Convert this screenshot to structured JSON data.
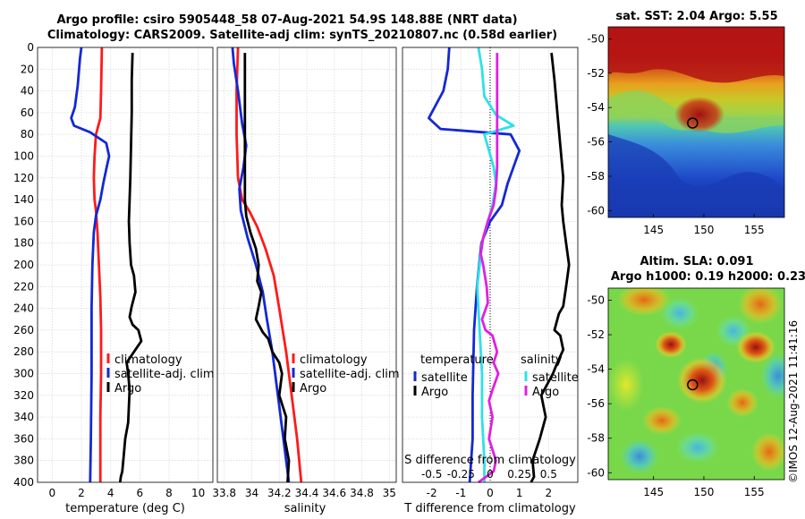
{
  "header": {
    "title_line1": "Argo profile: csiro 5905448_58 07-Aug-2021 54.9S 148.88E (NRT data)",
    "title_line2": "Climatology: CARS2009. Satellite-adj clim: synTS_20210807.nc (0.58d earlier)"
  },
  "colors": {
    "climatology": "#ff1a1a",
    "satellite": "#1428d4",
    "argo": "#000000",
    "salinity_satellite": "#30e0e8",
    "salinity_argo": "#e020e0"
  },
  "sst_map": {
    "title": "sat. SST: 2.04 Argo: 5.55",
    "lon_ticks": [
      145,
      150,
      155
    ],
    "lat_ticks": [
      -50,
      -52,
      -54,
      -56,
      -58,
      -60
    ],
    "float_lon": 148.88,
    "float_lat": -54.9
  },
  "sla_map": {
    "title_line1": "Altim. SLA: 0.091",
    "title_line2": "Argo h1000: 0.19 h2000: 0.23",
    "lon_ticks": [
      145,
      150,
      155
    ],
    "lat_ticks": [
      -50,
      -52,
      -54,
      -56,
      -58,
      -60
    ],
    "float_lon": 148.88,
    "float_lat": -54.9
  },
  "watermark": "©IMOS 12-Aug-2021 11:41:16",
  "chart_data": [
    {
      "type": "line",
      "name": "temperature",
      "xlabel": "temperature (deg C)",
      "ylabel": "",
      "xlim": [
        -1,
        11
      ],
      "ylim": [
        400,
        0
      ],
      "xticks": [
        0,
        2,
        4,
        6,
        8,
        10
      ],
      "yticks": [
        0,
        20,
        40,
        60,
        80,
        100,
        120,
        140,
        160,
        180,
        200,
        220,
        240,
        260,
        280,
        300,
        320,
        340,
        360,
        380,
        400
      ],
      "grid": true,
      "legend": {
        "position": "bottom-right",
        "entries": [
          "climatology",
          "satellite-adj. clim",
          "Argo"
        ]
      },
      "series": [
        {
          "name": "climatology",
          "color": "#ff1a1a",
          "points": [
            [
              3.4,
              0
            ],
            [
              3.35,
              40
            ],
            [
              3.3,
              65
            ],
            [
              3.0,
              80
            ],
            [
              2.9,
              100
            ],
            [
              2.85,
              120
            ],
            [
              2.9,
              140
            ],
            [
              3.0,
              150
            ],
            [
              3.1,
              170
            ],
            [
              3.2,
              200
            ],
            [
              3.3,
              230
            ],
            [
              3.35,
              260
            ],
            [
              3.35,
              300
            ],
            [
              3.3,
              340
            ],
            [
              3.3,
              380
            ],
            [
              3.3,
              400
            ]
          ]
        },
        {
          "name": "satellite-adj. clim",
          "color": "#1428d4",
          "points": [
            [
              2.0,
              0
            ],
            [
              1.9,
              10
            ],
            [
              1.75,
              35
            ],
            [
              1.55,
              55
            ],
            [
              1.3,
              65
            ],
            [
              1.5,
              72
            ],
            [
              2.6,
              78
            ],
            [
              3.7,
              88
            ],
            [
              3.9,
              100
            ],
            [
              3.7,
              112
            ],
            [
              3.5,
              125
            ],
            [
              3.3,
              140
            ],
            [
              3.0,
              155
            ],
            [
              2.85,
              170
            ],
            [
              2.75,
              200
            ],
            [
              2.7,
              240
            ],
            [
              2.7,
              300
            ],
            [
              2.65,
              360
            ],
            [
              2.6,
              400
            ]
          ]
        },
        {
          "name": "Argo",
          "color": "#000000",
          "points": [
            [
              5.5,
              5
            ],
            [
              5.45,
              30
            ],
            [
              5.45,
              60
            ],
            [
              5.4,
              90
            ],
            [
              5.35,
              120
            ],
            [
              5.3,
              140
            ],
            [
              5.25,
              160
            ],
            [
              5.3,
              180
            ],
            [
              5.4,
              200
            ],
            [
              5.6,
              210
            ],
            [
              5.7,
              225
            ],
            [
              5.45,
              238
            ],
            [
              5.3,
              248
            ],
            [
              5.5,
              255
            ],
            [
              5.9,
              260
            ],
            [
              6.1,
              270
            ],
            [
              5.6,
              280
            ],
            [
              5.1,
              290
            ],
            [
              5.2,
              300
            ],
            [
              5.3,
              315
            ],
            [
              5.25,
              330
            ],
            [
              5.2,
              345
            ],
            [
              5.0,
              360
            ],
            [
              4.9,
              375
            ],
            [
              4.8,
              390
            ],
            [
              4.7,
              395
            ],
            [
              4.65,
              400
            ]
          ]
        }
      ]
    },
    {
      "type": "line",
      "name": "salinity",
      "xlabel": "salinity",
      "ylabel": "",
      "xlim": [
        33.75,
        35.05
      ],
      "ylim": [
        400,
        0
      ],
      "xticks": [
        33.8,
        34,
        34.2,
        34.4,
        34.6,
        34.8,
        35
      ],
      "xtick_labels": [
        "33.8",
        "34",
        "34.2",
        "34.4",
        "34.6",
        "34.8",
        "35"
      ],
      "grid": true,
      "legend": {
        "position": "bottom-right",
        "entries": [
          "climatology",
          "satellite-adj. clim",
          "Argo"
        ]
      },
      "series": [
        {
          "name": "climatology",
          "color": "#ff1a1a",
          "points": [
            [
              33.9,
              0
            ],
            [
              33.89,
              40
            ],
            [
              33.89,
              80
            ],
            [
              33.9,
              120
            ],
            [
              33.93,
              140
            ],
            [
              33.98,
              150
            ],
            [
              34.04,
              165
            ],
            [
              34.1,
              185
            ],
            [
              34.16,
              210
            ],
            [
              34.2,
              240
            ],
            [
              34.25,
              280
            ],
            [
              34.29,
              320
            ],
            [
              34.33,
              360
            ],
            [
              34.36,
              400
            ]
          ]
        },
        {
          "name": "satellite-adj. clim",
          "color": "#1428d4",
          "points": [
            [
              33.86,
              0
            ],
            [
              33.87,
              15
            ],
            [
              33.9,
              40
            ],
            [
              33.93,
              70
            ],
            [
              33.96,
              90
            ],
            [
              33.94,
              110
            ],
            [
              33.91,
              130
            ],
            [
              33.92,
              150
            ],
            [
              33.97,
              175
            ],
            [
              34.03,
              200
            ],
            [
              34.08,
              225
            ],
            [
              34.11,
              250
            ],
            [
              34.15,
              280
            ],
            [
              34.19,
              320
            ],
            [
              34.24,
              370
            ],
            [
              34.27,
              400
            ]
          ]
        },
        {
          "name": "Argo",
          "color": "#000000",
          "points": [
            [
              33.95,
              5
            ],
            [
              33.95,
              60
            ],
            [
              33.95,
              100
            ],
            [
              33.95,
              140
            ],
            [
              33.96,
              155
            ],
            [
              33.99,
              170
            ],
            [
              34.03,
              185
            ],
            [
              34.05,
              200
            ],
            [
              34.04,
              215
            ],
            [
              34.07,
              225
            ],
            [
              34.05,
              238
            ],
            [
              34.03,
              250
            ],
            [
              34.08,
              262
            ],
            [
              34.12,
              268
            ],
            [
              34.15,
              280
            ],
            [
              34.2,
              290
            ],
            [
              34.22,
              300
            ],
            [
              34.2,
              320
            ],
            [
              34.25,
              340
            ],
            [
              34.24,
              360
            ],
            [
              34.27,
              380
            ],
            [
              34.26,
              400
            ]
          ]
        }
      ]
    },
    {
      "type": "line",
      "name": "difference",
      "xlabel": "T difference from climatology",
      "x2label": "S difference from climatology",
      "xlim": [
        -3,
        3
      ],
      "ylim": [
        400,
        0
      ],
      "xticks": [
        -2,
        -1,
        0,
        1,
        2
      ],
      "x2ticks": [
        -0.5,
        -0.25,
        0,
        0.25,
        0.5
      ],
      "x2tick_labels": [
        "-0.5",
        "-0.25",
        "0",
        "0.25",
        "0.5"
      ],
      "grid": true,
      "legend_temperature": {
        "title": "temperature",
        "position": "bottom-left",
        "entries": [
          "satellite",
          "Argo"
        ]
      },
      "legend_salinity": {
        "title": "salinity",
        "position": "bottom-right",
        "entries": [
          "satellite",
          "Argo"
        ]
      },
      "series": [
        {
          "name": "T satellite",
          "color": "#1428d4",
          "points": [
            [
              -1.4,
              0
            ],
            [
              -1.45,
              20
            ],
            [
              -1.6,
              40
            ],
            [
              -2.1,
              65
            ],
            [
              -1.7,
              75
            ],
            [
              0.7,
              80
            ],
            [
              1.0,
              95
            ],
            [
              0.8,
              110
            ],
            [
              0.6,
              125
            ],
            [
              0.4,
              145
            ],
            [
              0.0,
              160
            ],
            [
              -0.3,
              180
            ],
            [
              -0.45,
              220
            ],
            [
              -0.55,
              260
            ],
            [
              -0.6,
              320
            ],
            [
              -0.6,
              360
            ],
            [
              -0.7,
              400
            ]
          ]
        },
        {
          "name": "S satellite",
          "color": "#30e0e8",
          "points": [
            [
              -0.1,
              0
            ],
            [
              -0.07,
              20
            ],
            [
              -0.05,
              45
            ],
            [
              0.05,
              62
            ],
            [
              0.2,
              72
            ],
            [
              -0.05,
              80
            ],
            [
              -0.01,
              95
            ],
            [
              0.03,
              110
            ],
            [
              0.05,
              125
            ],
            [
              0.02,
              145
            ],
            [
              -0.02,
              160
            ],
            [
              -0.07,
              180
            ],
            [
              -0.11,
              220
            ],
            [
              -0.09,
              260
            ],
            [
              -0.07,
              300
            ],
            [
              -0.07,
              340
            ],
            [
              -0.05,
              380
            ],
            [
              -0.05,
              400
            ]
          ]
        },
        {
          "name": "T Argo",
          "color": "#000000",
          "points": [
            [
              2.1,
              5
            ],
            [
              2.2,
              30
            ],
            [
              2.3,
              60
            ],
            [
              2.4,
              90
            ],
            [
              2.5,
              120
            ],
            [
              2.45,
              145
            ],
            [
              2.5,
              160
            ],
            [
              2.6,
              180
            ],
            [
              2.7,
              200
            ],
            [
              2.6,
              220
            ],
            [
              2.5,
              238
            ],
            [
              2.35,
              245
            ],
            [
              2.2,
              260
            ],
            [
              2.4,
              265
            ],
            [
              2.5,
              278
            ],
            [
              2.3,
              290
            ],
            [
              2.15,
              300
            ],
            [
              1.75,
              320
            ],
            [
              1.9,
              340
            ],
            [
              1.7,
              360
            ],
            [
              1.45,
              380
            ],
            [
              1.5,
              395
            ],
            [
              1.4,
              400
            ]
          ]
        },
        {
          "name": "S Argo",
          "color": "#e020e0",
          "points": [
            [
              0.06,
              5
            ],
            [
              0.06,
              40
            ],
            [
              0.06,
              80
            ],
            [
              0.06,
              110
            ],
            [
              0.05,
              130
            ],
            [
              0.03,
              145
            ],
            [
              -0.02,
              160
            ],
            [
              -0.06,
              175
            ],
            [
              -0.08,
              190
            ],
            [
              -0.06,
              200
            ],
            [
              -0.03,
              220
            ],
            [
              -0.02,
              235
            ],
            [
              -0.07,
              250
            ],
            [
              -0.04,
              260
            ],
            [
              0.02,
              265
            ],
            [
              0.06,
              280
            ],
            [
              0.03,
              290
            ],
            [
              0.07,
              300
            ],
            [
              0.02,
              315
            ],
            [
              -0.01,
              325
            ],
            [
              0.02,
              340
            ],
            [
              -0.01,
              360
            ],
            [
              0.05,
              380
            ],
            [
              0.03,
              390
            ],
            [
              -0.1,
              400
            ]
          ]
        }
      ]
    }
  ]
}
